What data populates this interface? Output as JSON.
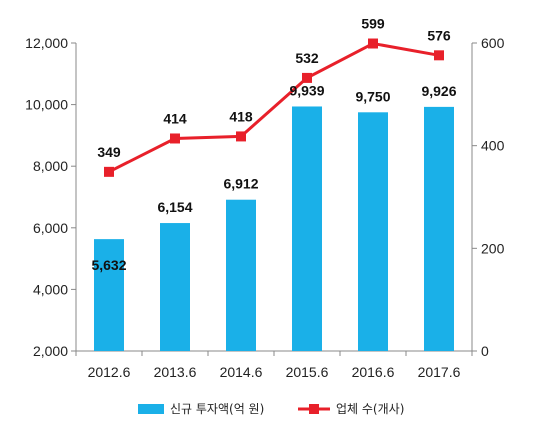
{
  "chart_data": {
    "type": "bar",
    "categories": [
      "2012.6",
      "2013.6",
      "2014.6",
      "2015.6",
      "2016.6",
      "2017.6"
    ],
    "series": [
      {
        "name": "신규 투자액(억 원)",
        "kind": "bar",
        "axis": "left",
        "color": "#1ab0e8",
        "values": [
          5632,
          6154,
          6912,
          9939,
          9750,
          9926
        ],
        "labels": [
          "5,632",
          "6,154",
          "6,912",
          "9,939",
          "9,750",
          "9,926"
        ]
      },
      {
        "name": "업체 수(개사)",
        "kind": "line",
        "axis": "right",
        "color": "#e8202a",
        "values": [
          349,
          414,
          418,
          532,
          599,
          576
        ],
        "labels": [
          "349",
          "414",
          "418",
          "532",
          "599",
          "576"
        ]
      }
    ],
    "y_left": {
      "ylim": [
        2000,
        12000
      ],
      "ticks": [
        2000,
        4000,
        6000,
        8000,
        10000,
        12000
      ],
      "tick_labels": [
        "2,000",
        "4,000",
        "6,000",
        "8,000",
        "10,000",
        "12,000"
      ]
    },
    "y_right": {
      "ylim": [
        0,
        600
      ],
      "ticks": [
        0,
        200,
        400,
        600
      ],
      "tick_labels": [
        "0",
        "200",
        "400",
        "600"
      ]
    },
    "title": "",
    "xlabel": "",
    "ylabel": "",
    "grid": false,
    "legend": "bottom"
  }
}
